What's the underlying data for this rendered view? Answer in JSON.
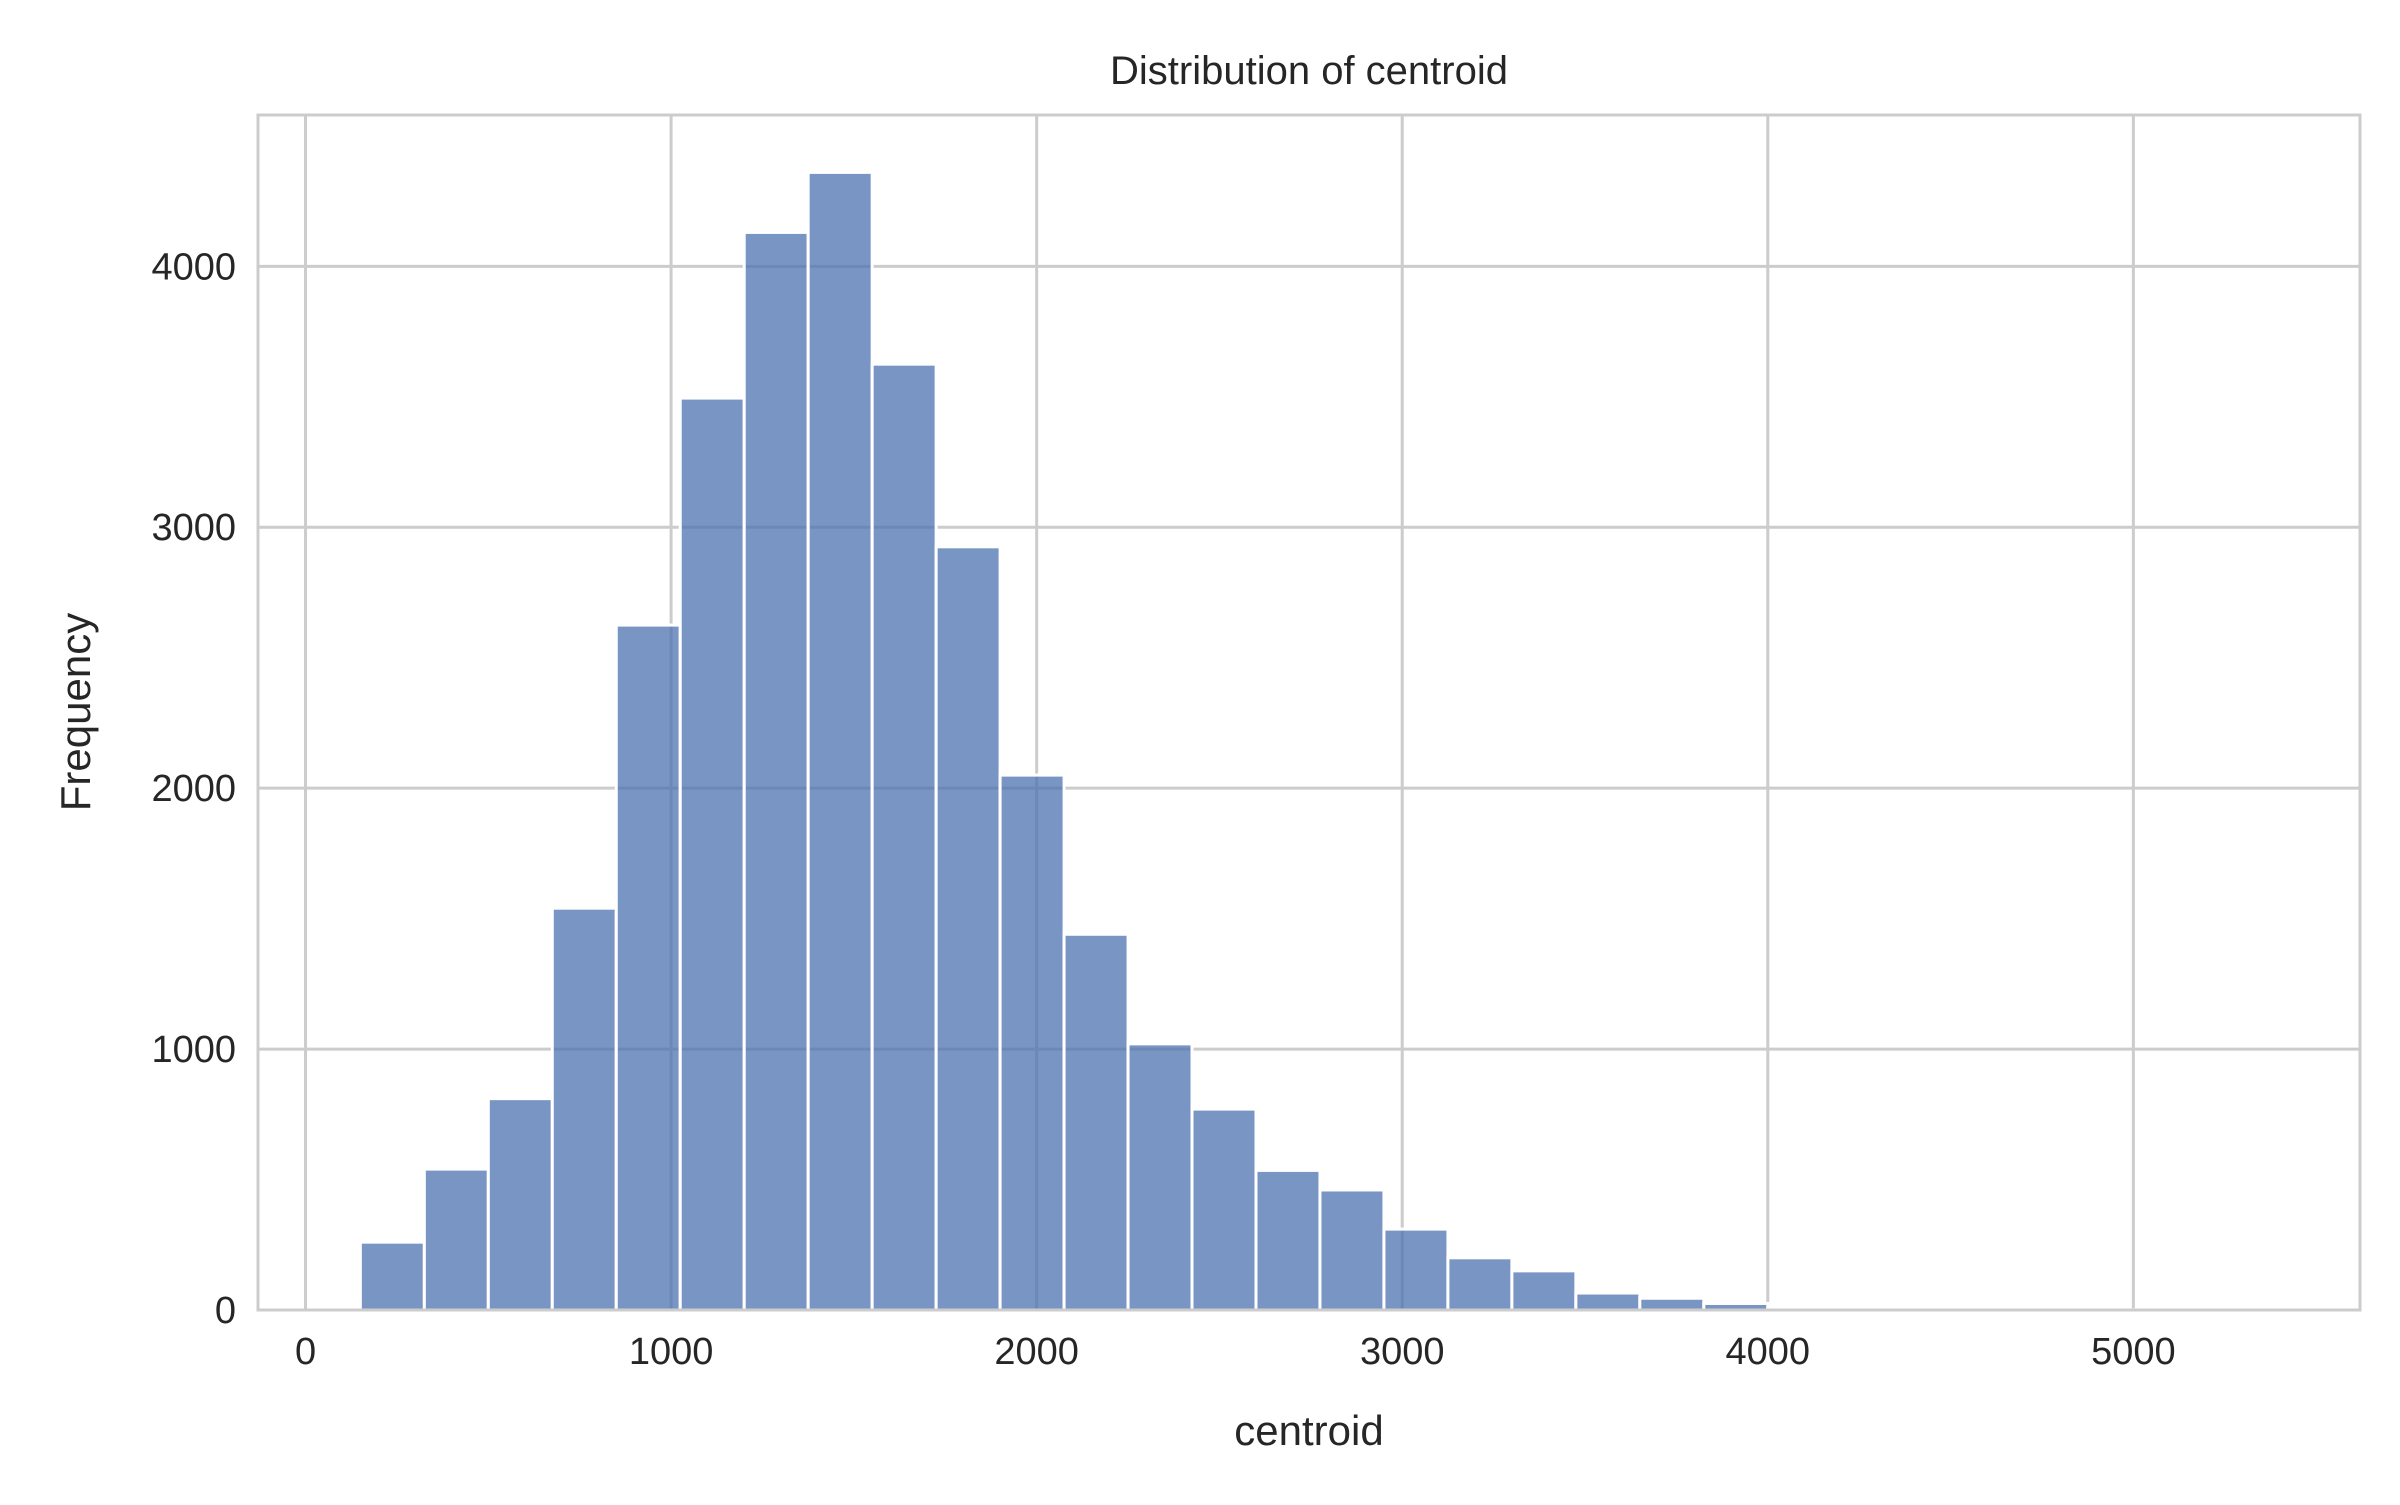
{
  "chart_data": {
    "type": "bar",
    "subtype": "histogram",
    "title": "Distribution of centroid",
    "xlabel": "centroid",
    "ylabel": "Frequency",
    "xlim": [
      -130,
      5620
    ],
    "ylim": [
      0,
      4580
    ],
    "xticks": [
      0,
      1000,
      2000,
      3000,
      4000,
      5000
    ],
    "yticks": [
      0,
      1000,
      2000,
      3000,
      4000
    ],
    "grid": true,
    "bar_color": "#4c72b0",
    "bar_opacity": 0.75,
    "edge_color": "#ffffff",
    "bin_width": 175,
    "bins": [
      {
        "x0": 150,
        "x1": 325,
        "count": 260
      },
      {
        "x0": 325,
        "x1": 500,
        "count": 540
      },
      {
        "x0": 500,
        "x1": 675,
        "count": 810
      },
      {
        "x0": 675,
        "x1": 850,
        "count": 1540
      },
      {
        "x0": 850,
        "x1": 1025,
        "count": 2625
      },
      {
        "x0": 1025,
        "x1": 1200,
        "count": 3495
      },
      {
        "x0": 1200,
        "x1": 1375,
        "count": 4130
      },
      {
        "x0": 1375,
        "x1": 1550,
        "count": 4360
      },
      {
        "x0": 1550,
        "x1": 1725,
        "count": 3625
      },
      {
        "x0": 1725,
        "x1": 1900,
        "count": 2925
      },
      {
        "x0": 1900,
        "x1": 2075,
        "count": 2050
      },
      {
        "x0": 2075,
        "x1": 2250,
        "count": 1440
      },
      {
        "x0": 2250,
        "x1": 2425,
        "count": 1020
      },
      {
        "x0": 2425,
        "x1": 2600,
        "count": 770
      },
      {
        "x0": 2600,
        "x1": 2775,
        "count": 535
      },
      {
        "x0": 2775,
        "x1": 2950,
        "count": 460
      },
      {
        "x0": 2950,
        "x1": 3125,
        "count": 310
      },
      {
        "x0": 3125,
        "x1": 3300,
        "count": 200
      },
      {
        "x0": 3300,
        "x1": 3475,
        "count": 150
      },
      {
        "x0": 3475,
        "x1": 3650,
        "count": 65
      },
      {
        "x0": 3650,
        "x1": 3825,
        "count": 45
      },
      {
        "x0": 3825,
        "x1": 4000,
        "count": 25
      },
      {
        "x0": 4000,
        "x1": 4175,
        "count": 8
      },
      {
        "x0": 4175,
        "x1": 4350,
        "count": 4
      },
      {
        "x0": 4350,
        "x1": 4525,
        "count": 3
      },
      {
        "x0": 4525,
        "x1": 4700,
        "count": 2
      },
      {
        "x0": 4700,
        "x1": 4875,
        "count": 1
      },
      {
        "x0": 4875,
        "x1": 5050,
        "count": 1
      },
      {
        "x0": 5050,
        "x1": 5225,
        "count": 1
      },
      {
        "x0": 5225,
        "x1": 5400,
        "count": 1
      }
    ]
  }
}
